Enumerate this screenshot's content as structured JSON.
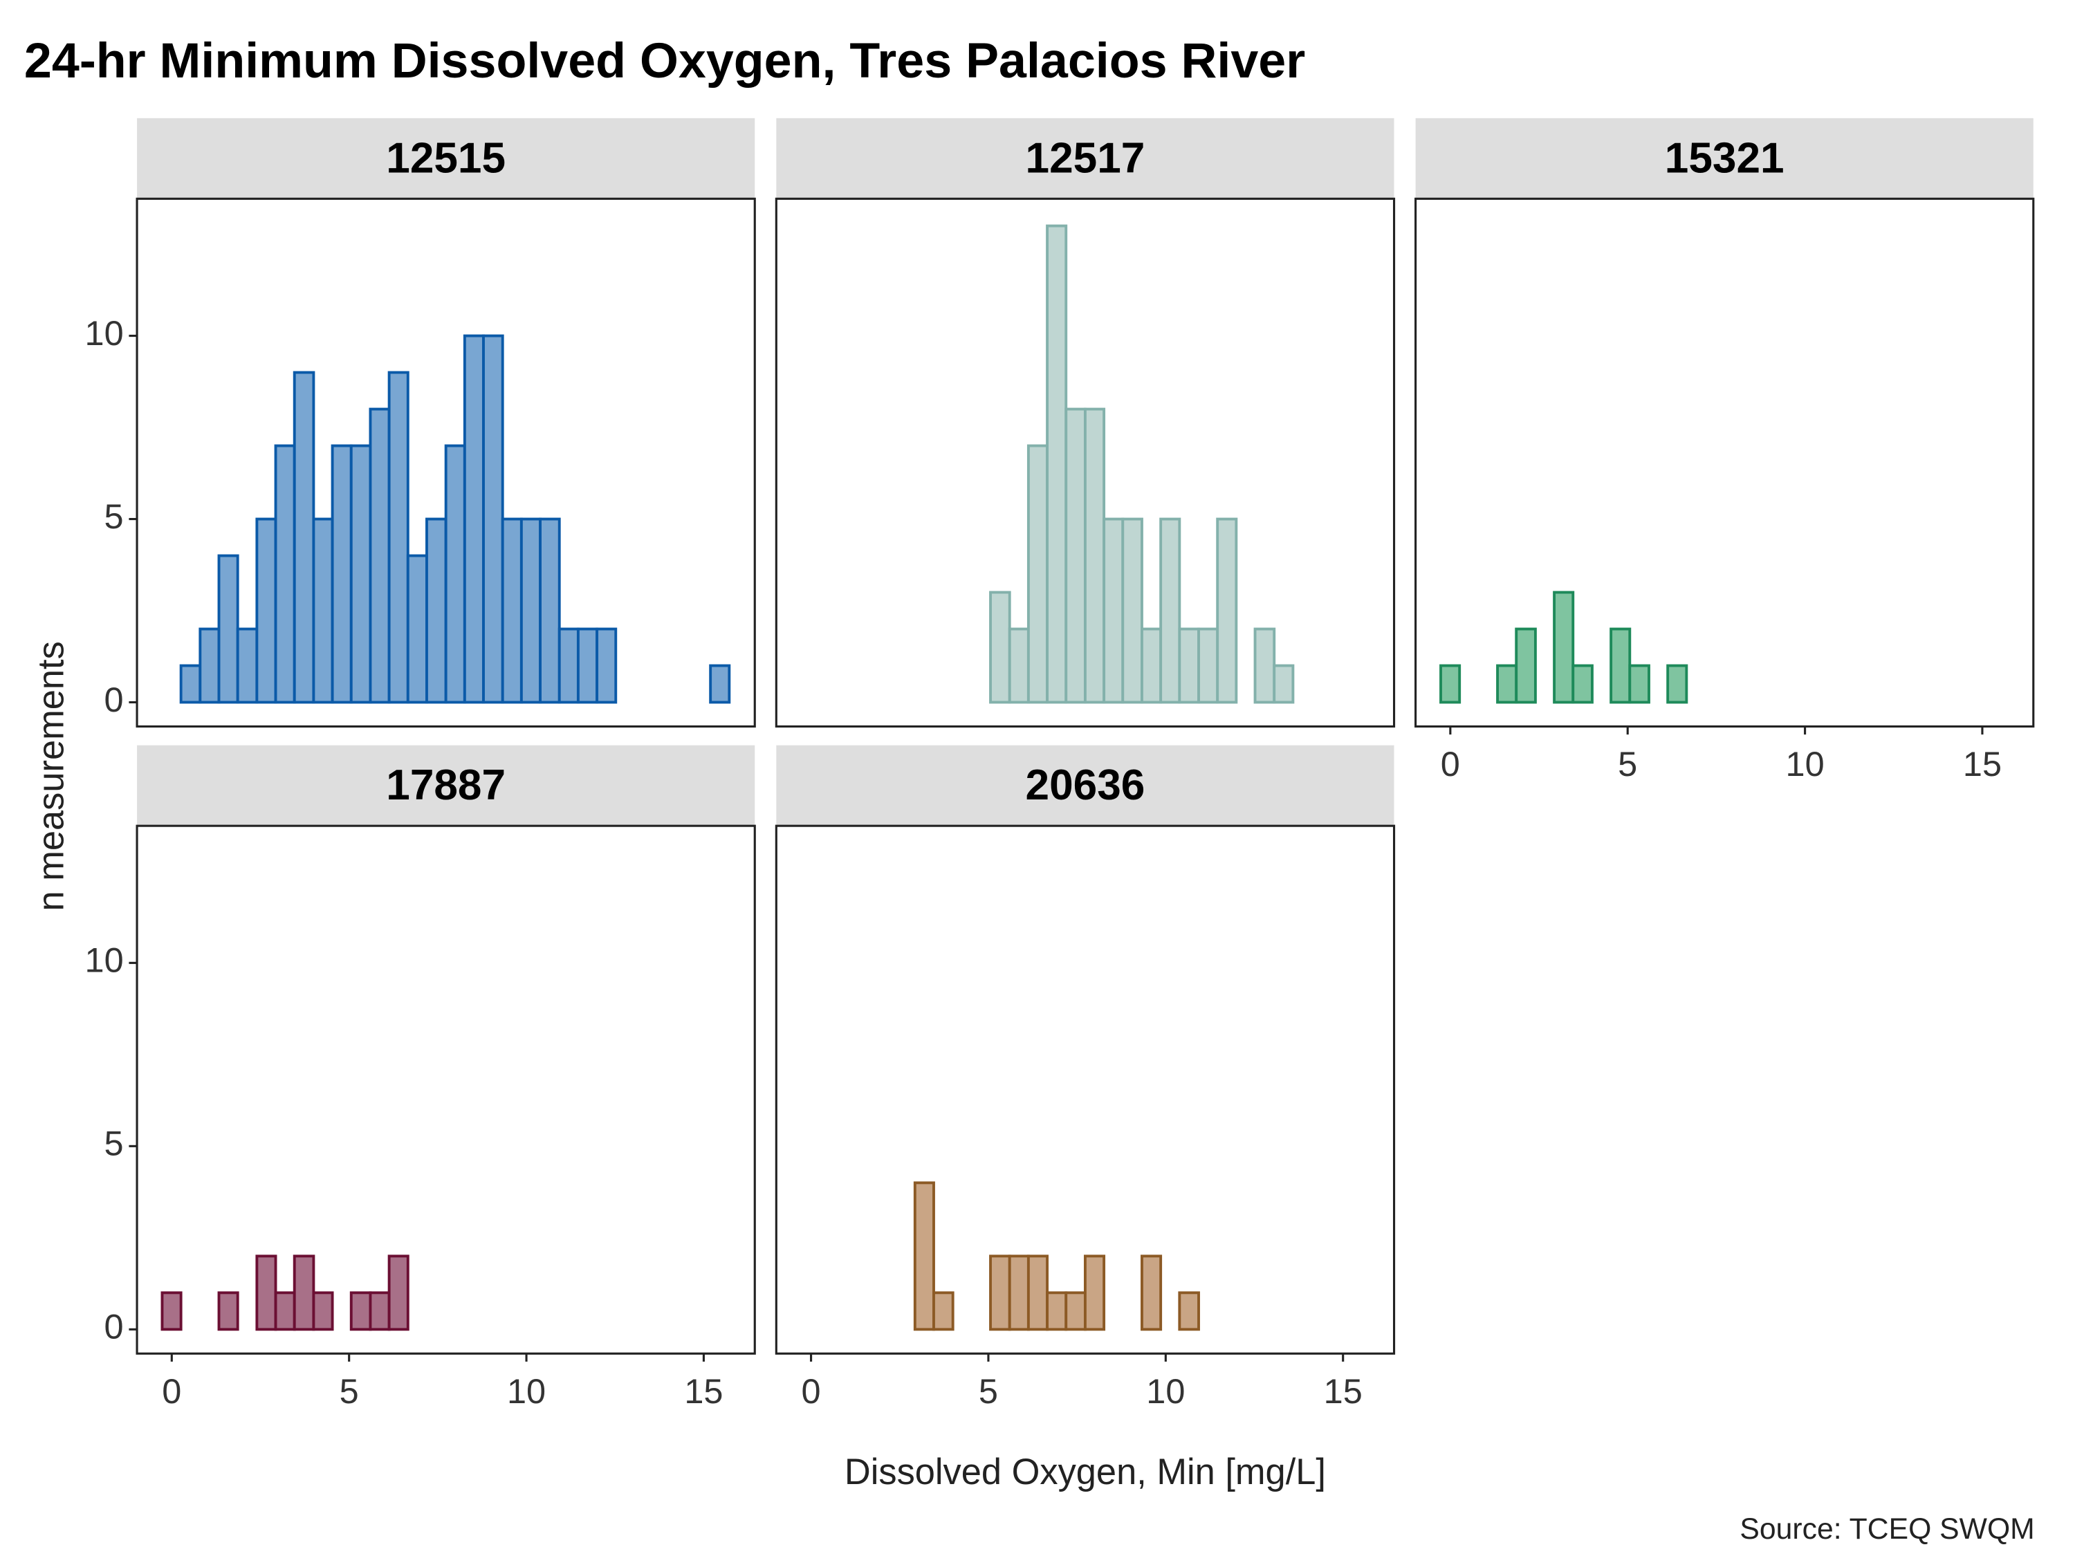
{
  "title": "24-hr Minimum Dissolved Oxygen, Tres Palacios River",
  "x_label": "Dissolved Oxygen, Min [mg/L]",
  "y_label": "n measurements",
  "source": "Source: TCEQ SWQM",
  "chart_data": [
    {
      "type": "histogram",
      "title": "12515",
      "color": "#79a6d2",
      "edge_color": "#0b5aa8",
      "bins": [
        -0.27,
        0.26,
        0.8,
        1.33,
        1.86,
        2.4,
        2.93,
        3.46,
        4.0,
        4.53,
        5.06,
        5.6,
        6.13,
        6.66,
        7.19,
        7.73,
        8.26,
        8.79,
        9.33,
        9.86,
        10.39,
        10.93,
        11.46,
        11.99,
        12.52,
        13.06,
        13.59,
        14.12,
        14.66,
        15.19,
        15.72
      ],
      "values": [
        0,
        1,
        2,
        4,
        2,
        5,
        7,
        9,
        5,
        7,
        7,
        8,
        9,
        4,
        5,
        7,
        10,
        10,
        5,
        5,
        5,
        2,
        2,
        2,
        0,
        0,
        0,
        0,
        0,
        1
      ],
      "xlim": [
        -0.98,
        16.44
      ],
      "ylim": [
        -0.66,
        13.74
      ],
      "yticks": [
        0,
        5,
        10
      ]
    },
    {
      "type": "histogram",
      "title": "12517",
      "color": "#bfd6d2",
      "edge_color": "#83b1ab",
      "bins": [
        -0.27,
        0.26,
        0.8,
        1.33,
        1.86,
        2.4,
        2.93,
        3.46,
        4.0,
        4.53,
        5.06,
        5.6,
        6.13,
        6.66,
        7.19,
        7.73,
        8.26,
        8.79,
        9.33,
        9.86,
        10.39,
        10.93,
        11.46,
        11.99,
        12.52,
        13.06,
        13.59,
        14.12,
        14.66,
        15.19,
        15.72
      ],
      "values": [
        0,
        0,
        0,
        0,
        0,
        0,
        0,
        0,
        0,
        0,
        3,
        2,
        7,
        13,
        8,
        8,
        5,
        5,
        2,
        5,
        2,
        2,
        5,
        0,
        2,
        1,
        0,
        0,
        0,
        0
      ],
      "xlim": [
        -0.98,
        16.44
      ],
      "ylim": [
        -0.66,
        13.74
      ]
    },
    {
      "type": "histogram",
      "title": "15321",
      "color": "#7fc4a0",
      "edge_color": "#1e8a5a",
      "bins": [
        -0.27,
        0.26,
        0.8,
        1.33,
        1.86,
        2.4,
        2.93,
        3.46,
        4.0,
        4.53,
        5.06,
        5.6,
        6.13,
        6.66,
        7.19,
        7.73,
        8.26,
        8.79,
        9.33,
        9.86,
        10.39,
        10.93,
        11.46,
        11.99,
        12.52,
        13.06,
        13.59,
        14.12,
        14.66,
        15.19,
        15.72
      ],
      "values": [
        1,
        0,
        0,
        1,
        2,
        0,
        3,
        1,
        0,
        2,
        1,
        0,
        1,
        0,
        0,
        0,
        0,
        0,
        0,
        0,
        0,
        0,
        0,
        0,
        0,
        0,
        0,
        0,
        0,
        0
      ],
      "xlim": [
        -0.98,
        16.44
      ],
      "ylim": [
        -0.66,
        13.74
      ],
      "xticks": [
        0,
        5,
        10,
        15
      ]
    },
    {
      "type": "histogram",
      "title": "17887",
      "color": "#a87088",
      "edge_color": "#6b0f33",
      "bins": [
        -0.27,
        0.26,
        0.8,
        1.33,
        1.86,
        2.4,
        2.93,
        3.46,
        4.0,
        4.53,
        5.06,
        5.6,
        6.13,
        6.66,
        7.19,
        7.73,
        8.26,
        8.79,
        9.33,
        9.86,
        10.39,
        10.93,
        11.46,
        11.99,
        12.52,
        13.06,
        13.59,
        14.12,
        14.66,
        15.19,
        15.72
      ],
      "values": [
        1,
        0,
        0,
        1,
        0,
        2,
        1,
        2,
        1,
        0,
        1,
        1,
        2,
        0,
        0,
        0,
        0,
        0,
        0,
        0,
        0,
        0,
        0,
        0,
        0,
        0,
        0,
        0,
        0,
        0
      ],
      "xlim": [
        -0.98,
        16.44
      ],
      "ylim": [
        -0.66,
        13.74
      ],
      "xticks": [
        0,
        5,
        10,
        15
      ],
      "yticks": [
        0,
        5,
        10
      ]
    },
    {
      "type": "histogram",
      "title": "20636",
      "color": "#c9a585",
      "edge_color": "#8c5a25",
      "bins": [
        -0.27,
        0.26,
        0.8,
        1.33,
        1.86,
        2.4,
        2.93,
        3.46,
        4.0,
        4.53,
        5.06,
        5.6,
        6.13,
        6.66,
        7.19,
        7.73,
        8.26,
        8.79,
        9.33,
        9.86,
        10.39,
        10.93,
        11.46,
        11.99,
        12.52,
        13.06,
        13.59,
        14.12,
        14.66,
        15.19,
        15.72
      ],
      "values": [
        0,
        0,
        0,
        0,
        0,
        0,
        4,
        1,
        0,
        0,
        2,
        2,
        2,
        1,
        1,
        2,
        0,
        0,
        2,
        0,
        1,
        0,
        0,
        0,
        0,
        0,
        0,
        0,
        0,
        0
      ],
      "xlim": [
        -0.98,
        16.44
      ],
      "ylim": [
        -0.66,
        13.74
      ],
      "xticks": [
        0,
        5,
        10,
        15
      ]
    }
  ]
}
